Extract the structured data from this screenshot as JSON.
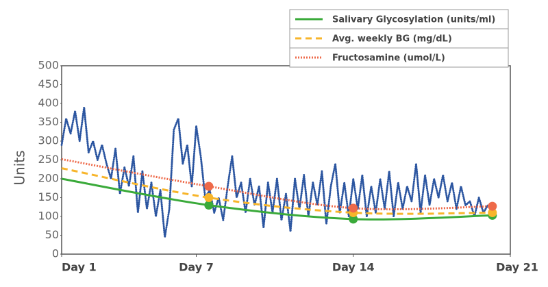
{
  "chart_data": {
    "type": "line",
    "ylabel": "Units",
    "xlim": [
      1,
      21
    ],
    "xticks": [
      {
        "value": 1,
        "label": "Day 1"
      },
      {
        "value": 7,
        "label": "Day 7"
      },
      {
        "value": 14,
        "label": "Day 14"
      },
      {
        "value": 21,
        "label": "Day 21"
      }
    ],
    "ylim": [
      0,
      500
    ],
    "yticks": [
      0,
      50,
      100,
      150,
      200,
      250,
      300,
      350,
      400,
      450,
      500
    ],
    "legend": "top right",
    "series": [
      {
        "color": "#2b55a0",
        "style": "dots",
        "x": [
          1.0,
          1.2,
          1.4,
          1.6,
          1.8,
          2.0,
          2.2,
          2.4,
          2.6,
          2.8,
          3.0,
          3.2,
          3.4,
          3.6,
          3.8,
          4.0,
          4.2,
          4.4,
          4.6,
          4.8,
          5.0,
          5.2,
          5.4,
          5.6,
          5.8,
          6.0,
          6.2,
          6.4,
          6.6,
          6.8,
          7.0,
          7.2,
          7.4,
          7.6,
          7.8,
          8.0,
          8.2,
          8.4,
          8.6,
          8.8,
          9.0,
          9.2,
          9.4,
          9.6,
          9.8,
          10.0,
          10.2,
          10.4,
          10.6,
          10.8,
          11.0,
          11.2,
          11.4,
          11.6,
          11.8,
          12.0,
          12.2,
          12.4,
          12.6,
          12.8,
          13.0,
          13.2,
          13.4,
          13.6,
          13.8,
          14.0,
          14.2,
          14.4,
          14.6,
          14.8,
          15.0,
          15.2,
          15.4,
          15.6,
          15.8,
          16.0,
          16.2,
          16.4,
          16.6,
          16.8,
          17.0,
          17.2,
          17.4,
          17.6,
          17.8,
          18.0,
          18.2,
          18.4,
          18.6,
          18.8,
          19.0,
          19.2,
          19.4,
          19.6,
          19.8,
          20.0,
          20.2
        ],
        "values": [
          290,
          360,
          320,
          380,
          300,
          390,
          270,
          300,
          250,
          290,
          240,
          200,
          280,
          160,
          230,
          180,
          260,
          110,
          220,
          120,
          190,
          100,
          170,
          45,
          120,
          330,
          360,
          240,
          290,
          180,
          340,
          260,
          150,
          170,
          110,
          150,
          90,
          180,
          260,
          150,
          190,
          110,
          200,
          130,
          180,
          70,
          190,
          110,
          200,
          90,
          160,
          60,
          200,
          120,
          210,
          100,
          190,
          130,
          220,
          80,
          180,
          240,
          110,
          190,
          100,
          200,
          120,
          210,
          100,
          180,
          110,
          200,
          120,
          220,
          100,
          190,
          120,
          180,
          140,
          240,
          110,
          210,
          130,
          200,
          150,
          210,
          140,
          190,
          120,
          180,
          130,
          140,
          100,
          150,
          110,
          130,
          120
        ]
      },
      {
        "name": "Salivary Glycosylation (units/ml)",
        "color": "#3aaa3a",
        "style": "solid",
        "x": [
          1,
          7.56,
          14,
          20.2
        ],
        "values": [
          200,
          130,
          93,
          103
        ]
      },
      {
        "name": "Avg. weekly BG (mg/dL)",
        "color": "#f7b52b",
        "style": "dashed",
        "x": [
          1,
          7.56,
          14,
          20.2
        ],
        "values": [
          228,
          150,
          110,
          110
        ]
      },
      {
        "name": "Fructosamine (umol/L)",
        "color": "#ee6a4a",
        "style": "dotted",
        "x": [
          1,
          7.56,
          14,
          20.2
        ],
        "values": [
          252,
          180,
          122,
          127
        ]
      }
    ]
  }
}
